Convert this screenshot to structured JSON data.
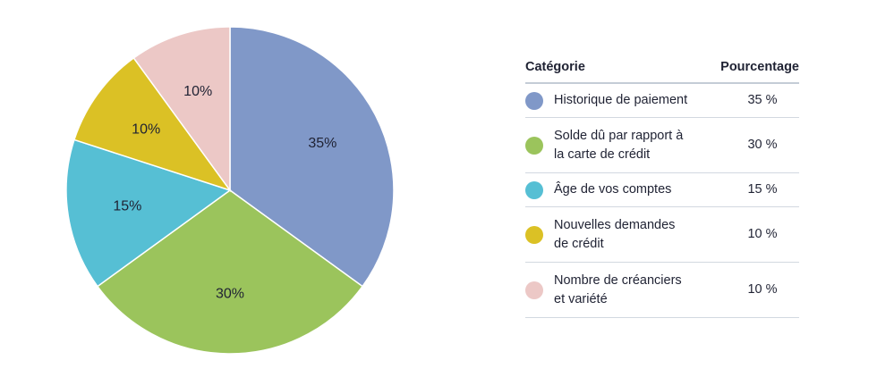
{
  "chart_data": {
    "type": "pie",
    "slices": [
      {
        "label": "35%",
        "value": 35,
        "color": "#8098c8"
      },
      {
        "label": "30%",
        "value": 30,
        "color": "#9bc45c"
      },
      {
        "label": "15%",
        "value": 15,
        "color": "#56bfd4"
      },
      {
        "label": "10%",
        "value": 10,
        "color": "#dbc125"
      },
      {
        "label": "10%",
        "value": 10,
        "color": "#ecc8c6"
      }
    ],
    "start_angle_deg": 0,
    "direction": "clockwise"
  },
  "legend": {
    "header_category": "Catégorie",
    "header_percentage": "Pourcentage",
    "rows": [
      {
        "label_lines": [
          "Historique de paiement"
        ],
        "percent": "35 %",
        "color": "#8098c8"
      },
      {
        "label_lines": [
          "Solde dû par rapport à",
          "la carte de crédit"
        ],
        "percent": "30 %",
        "color": "#9bc45c"
      },
      {
        "label_lines": [
          "Âge de vos comptes"
        ],
        "percent": "15 %",
        "color": "#56bfd4"
      },
      {
        "label_lines": [
          "Nouvelles demandes",
          "de crédit"
        ],
        "percent": "10 %",
        "color": "#dbc125"
      },
      {
        "label_lines": [
          "Nombre de créanciers",
          "et variété"
        ],
        "percent": "10 %",
        "color": "#ecc8c6"
      }
    ]
  }
}
